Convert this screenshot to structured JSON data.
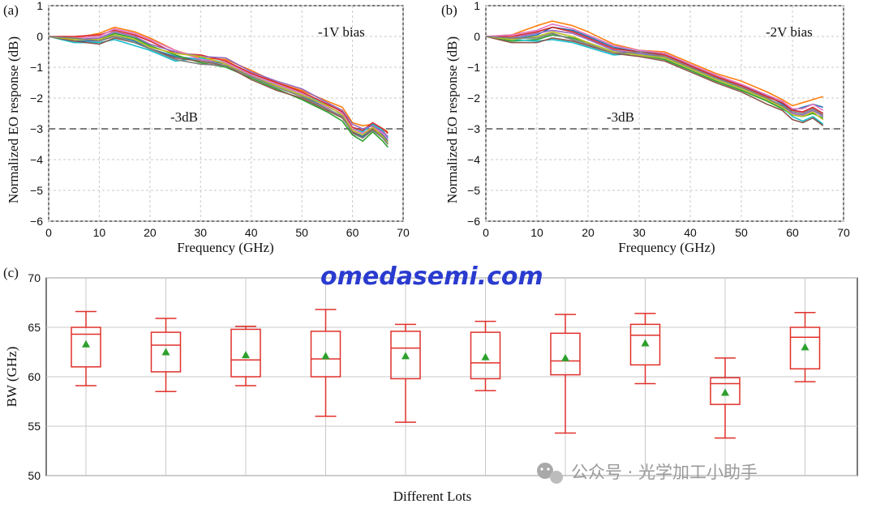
{
  "chart_data": [
    {
      "panel_label": "(a)",
      "type": "line",
      "xlabel": "Frequency  (GHz)",
      "ylabel": "Normalized EO response  (dB)",
      "xlim": [
        0,
        70
      ],
      "ylim": [
        -6,
        1
      ],
      "xticks": [
        0,
        10,
        20,
        30,
        40,
        50,
        60,
        70
      ],
      "yticks": [
        1,
        0,
        -1,
        -2,
        -3,
        -4,
        -5,
        -6
      ],
      "grid": true,
      "annotation": "-1V bias",
      "reference_line": {
        "y": -3,
        "label": "-3dB"
      },
      "x": [
        0,
        5,
        10,
        13,
        17,
        20,
        25,
        30,
        35,
        40,
        45,
        50,
        55,
        58,
        60,
        62,
        64,
        66,
        67
      ],
      "series": [
        {
          "values": [
            0,
            -0.15,
            -0.15,
            0.05,
            -0.15,
            -0.4,
            -0.65,
            -0.75,
            -0.9,
            -1.3,
            -1.6,
            -1.9,
            -2.35,
            -2.6,
            -3.1,
            -3.25,
            -2.95,
            -3.2,
            -3.4
          ]
        },
        {
          "values": [
            0,
            -0.05,
            0.1,
            0.3,
            0.15,
            -0.05,
            -0.45,
            -0.7,
            -0.75,
            -1.1,
            -1.5,
            -1.75,
            -2.1,
            -2.3,
            -2.8,
            -2.9,
            -2.85,
            -3.0,
            -3.1
          ]
        },
        {
          "values": [
            0,
            -0.1,
            -0.1,
            0.1,
            -0.05,
            -0.3,
            -0.6,
            -0.85,
            -1.0,
            -1.35,
            -1.7,
            -2.05,
            -2.45,
            -2.75,
            -3.2,
            -3.4,
            -3.1,
            -3.4,
            -3.6
          ]
        },
        {
          "values": [
            0,
            -0.2,
            -0.2,
            -0.1,
            -0.3,
            -0.45,
            -0.8,
            -0.7,
            -0.85,
            -1.25,
            -1.55,
            -1.85,
            -2.25,
            -2.55,
            -3.0,
            -3.1,
            -2.85,
            -3.05,
            -3.3
          ]
        },
        {
          "values": [
            0,
            0,
            0.05,
            0.2,
            0.05,
            -0.15,
            -0.55,
            -0.6,
            -0.8,
            -1.2,
            -1.5,
            -1.8,
            -2.2,
            -2.45,
            -2.95,
            -3.05,
            -2.8,
            -3.0,
            -3.15
          ]
        },
        {
          "values": [
            0,
            -0.1,
            -0.05,
            0.15,
            0.0,
            -0.25,
            -0.5,
            -0.65,
            -0.7,
            -1.15,
            -1.45,
            -1.7,
            -2.15,
            -2.4,
            -2.85,
            -3.0,
            -2.9,
            -3.1,
            -3.25
          ]
        },
        {
          "values": [
            0,
            -0.15,
            -0.25,
            -0.05,
            -0.2,
            -0.4,
            -0.7,
            -0.8,
            -0.95,
            -1.4,
            -1.75,
            -2.0,
            -2.4,
            -2.65,
            -3.1,
            -3.3,
            -3.0,
            -3.3,
            -3.5
          ]
        },
        {
          "values": [
            0,
            -0.05,
            0.0,
            0.25,
            0.1,
            -0.1,
            -0.45,
            -0.75,
            -0.85,
            -1.25,
            -1.55,
            -1.85,
            -2.3,
            -2.5,
            -3.0,
            -3.15,
            -2.95,
            -3.15,
            -3.35
          ]
        },
        {
          "values": [
            0,
            -0.1,
            -0.1,
            0.05,
            -0.1,
            -0.35,
            -0.55,
            -0.65,
            -0.9,
            -1.3,
            -1.6,
            -1.9,
            -2.25,
            -2.55,
            -3.05,
            -3.2,
            -2.95,
            -3.25,
            -3.45
          ]
        },
        {
          "values": [
            0,
            -0.05,
            -0.15,
            0.0,
            -0.2,
            -0.4,
            -0.75,
            -0.9,
            -0.95,
            -1.3,
            -1.65,
            -1.95,
            -2.35,
            -2.6,
            -3.15,
            -3.3,
            -3.05,
            -3.3,
            -3.5
          ]
        }
      ]
    },
    {
      "panel_label": "(b)",
      "type": "line",
      "xlabel": "Frequency  (GHz)",
      "ylabel": "Normalized EO response  (dB)",
      "xlim": [
        0,
        70
      ],
      "ylim": [
        -6,
        1
      ],
      "xticks": [
        0,
        10,
        20,
        30,
        40,
        50,
        60,
        70
      ],
      "yticks": [
        1,
        0,
        -1,
        -2,
        -3,
        -4,
        -5,
        -6
      ],
      "grid": true,
      "annotation": "-2V bias",
      "reference_line": {
        "y": -3,
        "label": "-3dB"
      },
      "x": [
        0,
        5,
        10,
        13,
        17,
        20,
        25,
        30,
        35,
        40,
        45,
        50,
        55,
        58,
        60,
        62,
        64,
        66
      ],
      "series": [
        {
          "values": [
            0,
            -0.1,
            0.05,
            0.3,
            0.2,
            0.0,
            -0.35,
            -0.5,
            -0.55,
            -0.95,
            -1.3,
            -1.6,
            -1.9,
            -2.2,
            -2.4,
            -2.3,
            -2.2,
            -2.3
          ]
        },
        {
          "values": [
            0,
            0.05,
            0.35,
            0.5,
            0.35,
            0.15,
            -0.25,
            -0.45,
            -0.5,
            -0.85,
            -1.2,
            -1.45,
            -1.8,
            -2.05,
            -2.25,
            -2.15,
            -2.05,
            -1.95
          ]
        },
        {
          "values": [
            0,
            -0.15,
            -0.1,
            0.05,
            -0.05,
            -0.2,
            -0.5,
            -0.6,
            -0.75,
            -1.1,
            -1.45,
            -1.75,
            -2.1,
            -2.35,
            -2.55,
            -2.6,
            -2.5,
            -2.65
          ]
        },
        {
          "values": [
            0,
            -0.1,
            -0.15,
            -0.1,
            -0.2,
            -0.35,
            -0.6,
            -0.55,
            -0.7,
            -1.05,
            -1.4,
            -1.7,
            -2.05,
            -2.3,
            -2.6,
            -2.75,
            -2.6,
            -2.85
          ]
        },
        {
          "values": [
            0,
            0.0,
            0.15,
            0.3,
            0.15,
            -0.05,
            -0.4,
            -0.5,
            -0.6,
            -0.95,
            -1.3,
            -1.6,
            -1.95,
            -2.15,
            -2.4,
            -2.45,
            -2.3,
            -2.5
          ]
        },
        {
          "values": [
            0,
            -0.05,
            0.1,
            0.2,
            0.1,
            -0.1,
            -0.45,
            -0.55,
            -0.65,
            -1.0,
            -1.35,
            -1.65,
            -2.0,
            -2.25,
            -2.5,
            -2.55,
            -2.4,
            -2.6
          ]
        },
        {
          "values": [
            0,
            -0.2,
            -0.2,
            -0.05,
            -0.15,
            -0.3,
            -0.55,
            -0.65,
            -0.8,
            -1.15,
            -1.5,
            -1.8,
            -2.2,
            -2.4,
            -2.7,
            -2.8,
            -2.65,
            -2.9
          ]
        },
        {
          "values": [
            0,
            0.05,
            0.2,
            0.4,
            0.25,
            0.05,
            -0.3,
            -0.45,
            -0.55,
            -0.9,
            -1.25,
            -1.55,
            -1.9,
            -2.1,
            -2.35,
            -2.35,
            -2.2,
            -2.4
          ]
        },
        {
          "values": [
            0,
            -0.1,
            0.0,
            0.15,
            0.0,
            -0.2,
            -0.5,
            -0.6,
            -0.7,
            -1.05,
            -1.4,
            -1.7,
            -2.05,
            -2.3,
            -2.55,
            -2.6,
            -2.45,
            -2.7
          ]
        },
        {
          "values": [
            0,
            -0.05,
            -0.05,
            0.1,
            -0.1,
            -0.25,
            -0.55,
            -0.5,
            -0.65,
            -1.0,
            -1.35,
            -1.65,
            -2.0,
            -2.25,
            -2.45,
            -2.5,
            -2.35,
            -2.55
          ]
        }
      ]
    },
    {
      "panel_label": "(c)",
      "type": "box",
      "xlabel": "Different Lots",
      "ylabel": "BW (GHz)",
      "ylim": [
        50,
        70
      ],
      "yticks": [
        70,
        65,
        60,
        55,
        50
      ],
      "grid": true,
      "boxes": [
        {
          "min": 59.1,
          "q1": 61.0,
          "median": 64.3,
          "q3": 65.0,
          "max": 66.6,
          "mean": 63.3
        },
        {
          "min": 58.5,
          "q1": 60.5,
          "median": 63.2,
          "q3": 64.5,
          "max": 65.9,
          "mean": 62.5
        },
        {
          "min": 59.1,
          "q1": 60.0,
          "median": 61.7,
          "q3": 64.8,
          "max": 65.1,
          "mean": 62.2
        },
        {
          "min": 56.0,
          "q1": 60.0,
          "median": 61.8,
          "q3": 64.6,
          "max": 66.8,
          "mean": 62.1
        },
        {
          "min": 55.4,
          "q1": 59.8,
          "median": 62.9,
          "q3": 64.6,
          "max": 65.3,
          "mean": 62.1
        },
        {
          "min": 58.6,
          "q1": 59.8,
          "median": 61.4,
          "q3": 64.5,
          "max": 65.6,
          "mean": 62.0
        },
        {
          "min": 54.3,
          "q1": 60.2,
          "median": 61.6,
          "q3": 64.4,
          "max": 66.3,
          "mean": 61.9
        },
        {
          "min": 59.3,
          "q1": 61.2,
          "median": 64.2,
          "q3": 65.3,
          "max": 66.4,
          "mean": 63.4
        },
        {
          "min": 53.8,
          "q1": 57.2,
          "median": 59.3,
          "q3": 59.9,
          "max": 61.9,
          "mean": 58.4
        },
        {
          "min": 59.5,
          "q1": 60.8,
          "median": 64.0,
          "q3": 65.0,
          "max": 66.5,
          "mean": 63.0
        }
      ]
    }
  ],
  "colors": {
    "series": [
      "#1f77b4",
      "#ff7f0e",
      "#2ca02c",
      "#17becf",
      "#d62728",
      "#9467bd",
      "#8c564b",
      "#e377c2",
      "#bcbd22",
      "#7f7f7f"
    ],
    "grid": "#c8c8c8",
    "reference_line": "#7f7f7f",
    "box": "#e0302a",
    "mean_marker": "#2ca02c",
    "watermark_main": "#2a3bd0"
  },
  "watermark": {
    "main": "omedasemi.com",
    "sub": "公众号 · 光学加工小助手"
  }
}
